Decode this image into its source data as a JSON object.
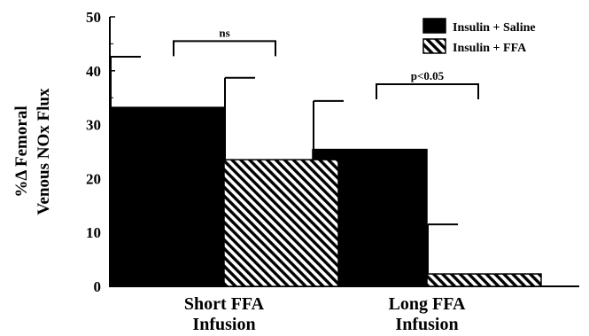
{
  "chart_data": {
    "type": "bar",
    "categories": [
      "Short FFA\nInfusion",
      "Long FFA\nInfusion"
    ],
    "series": [
      {
        "name": "Insulin + Saline",
        "values": [
          33.2,
          25.4
        ],
        "error_plus": [
          9.4,
          9.0
        ],
        "fill": "solid"
      },
      {
        "name": "Insulin + FFA",
        "values": [
          23.5,
          2.3
        ],
        "error_plus": [
          15.2,
          9.2
        ],
        "fill": "hatched"
      }
    ],
    "ylabel": "%Δ Femoral\nVenous NOx Flux",
    "xlabel": "",
    "ylim": [
      0,
      50
    ],
    "yticks": [
      0,
      10,
      20,
      30,
      40,
      50
    ],
    "legend_position": "top-right",
    "annotations": [
      {
        "label": "ns",
        "category_index": 0,
        "y_level": 45.5
      },
      {
        "label": "p<0.05",
        "category_index": 1,
        "y_level": 37.5
      }
    ],
    "colors": {
      "bar": "#000000",
      "background": "#ffffff"
    }
  }
}
